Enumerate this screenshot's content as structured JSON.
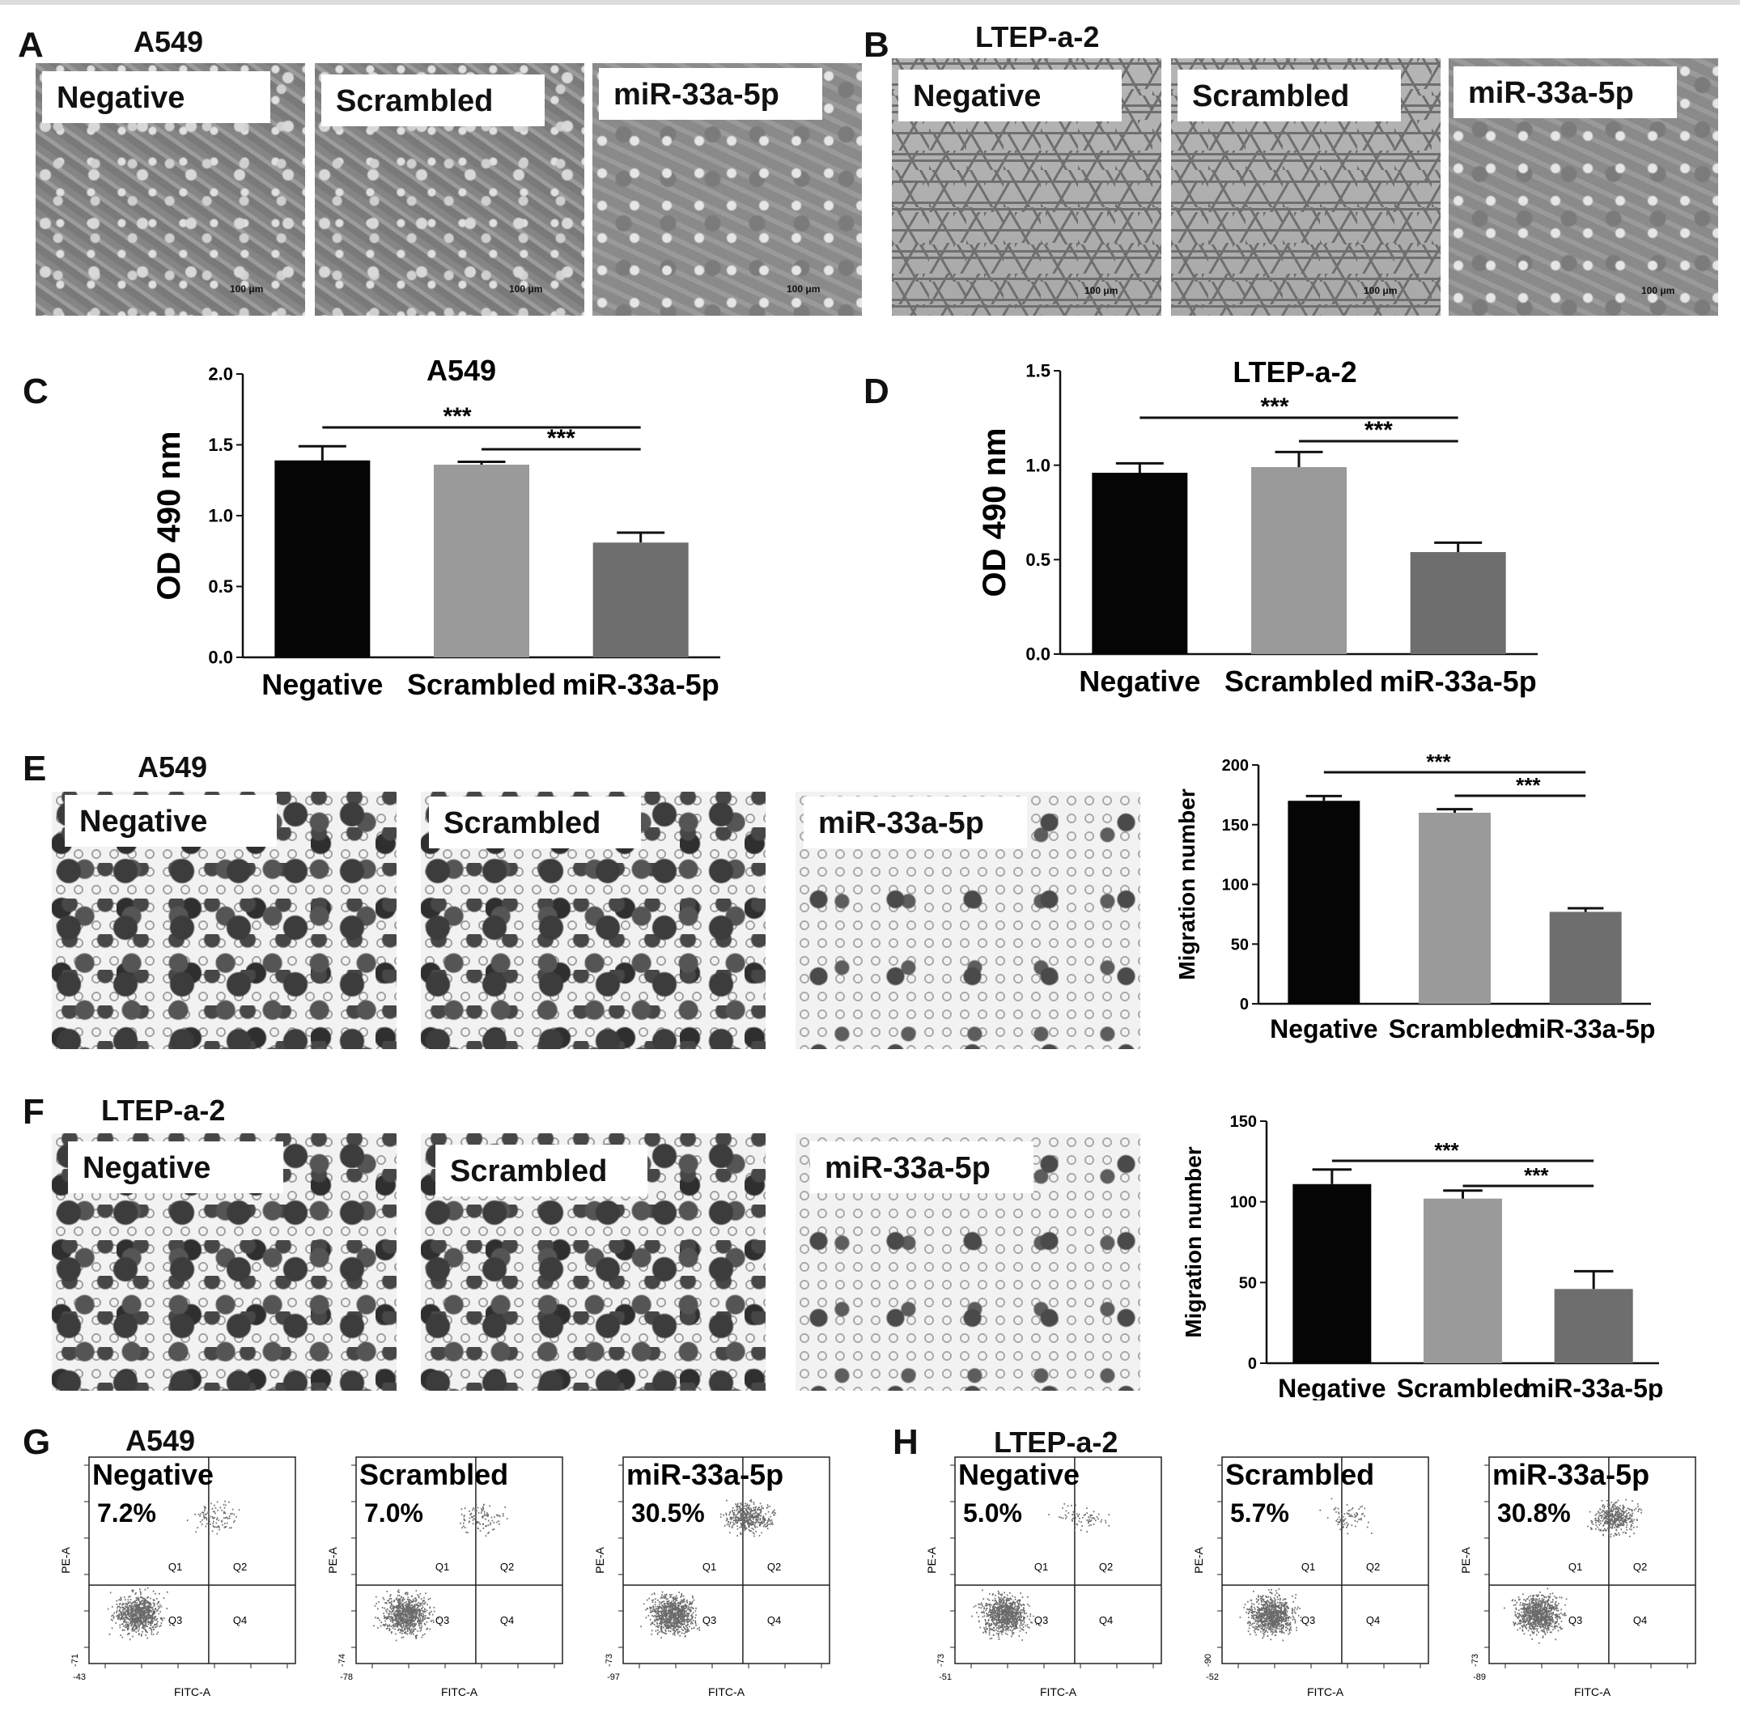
{
  "panels": {
    "A": {
      "letter": "A",
      "cell_line": "A549",
      "images": [
        "Negative",
        "Scrambled",
        "miR-33a-5p"
      ],
      "scale": "100 μm"
    },
    "B": {
      "letter": "B",
      "cell_line": "LTEP-a-2",
      "images": [
        "Negative",
        "Scrambled",
        "miR-33a-5p"
      ],
      "scale": "100 μm"
    },
    "E": {
      "letter": "E",
      "cell_line": "A549",
      "images": [
        "Negative",
        "Scrambled",
        "miR-33a-5p"
      ]
    },
    "F": {
      "letter": "F",
      "cell_line": "LTEP-a-2",
      "images": [
        "Negative",
        "Scrambled",
        "miR-33a-5p"
      ]
    },
    "C": {
      "letter": "C"
    },
    "D": {
      "letter": "D"
    },
    "G": {
      "letter": "G",
      "cell_line": "A549"
    },
    "H": {
      "letter": "H",
      "cell_line": "LTEP-a-2"
    }
  },
  "chart_data": [
    {
      "id": "C",
      "type": "bar",
      "title": "A549",
      "ylabel": "OD 490 nm",
      "xlabel": "",
      "categories": [
        "Negative",
        "Scrambled",
        "miR-33a-5p"
      ],
      "values": [
        1.39,
        1.36,
        0.81
      ],
      "errors": [
        0.1,
        0.02,
        0.07
      ],
      "ylim": [
        0,
        2.0
      ],
      "yticks": [
        "0.0",
        "0.5",
        "1.0",
        "1.5",
        "2.0"
      ],
      "bar_colors": [
        "#050505",
        "#9a9a9a",
        "#6e6e6e"
      ],
      "significance": [
        {
          "from": 0,
          "to": 2,
          "label": "***"
        },
        {
          "from": 1,
          "to": 2,
          "label": "***"
        }
      ]
    },
    {
      "id": "D",
      "type": "bar",
      "title": "LTEP-a-2",
      "ylabel": "OD 490 nm",
      "xlabel": "",
      "categories": [
        "Negative",
        "Scrambled",
        "miR-33a-5p"
      ],
      "values": [
        0.96,
        0.99,
        0.54
      ],
      "errors": [
        0.05,
        0.08,
        0.05
      ],
      "ylim": [
        0,
        1.5
      ],
      "yticks": [
        "0.0",
        "0.5",
        "1.0",
        "1.5"
      ],
      "bar_colors": [
        "#050505",
        "#9a9a9a",
        "#6e6e6e"
      ],
      "significance": [
        {
          "from": 0,
          "to": 2,
          "label": "***"
        },
        {
          "from": 1,
          "to": 2,
          "label": "***"
        }
      ]
    },
    {
      "id": "E",
      "type": "bar",
      "title": "",
      "ylabel": "Migration number",
      "xlabel": "",
      "categories": [
        "Negative",
        "Scrambled",
        "miR-33a-5p"
      ],
      "values": [
        170,
        160,
        77
      ],
      "errors": [
        4,
        3,
        3
      ],
      "ylim": [
        0,
        200
      ],
      "yticks": [
        "0",
        "50",
        "100",
        "150",
        "200"
      ],
      "bar_colors": [
        "#050505",
        "#9a9a9a",
        "#6e6e6e"
      ],
      "significance": [
        {
          "from": 0,
          "to": 2,
          "label": "***"
        },
        {
          "from": 1,
          "to": 2,
          "label": "***"
        }
      ]
    },
    {
      "id": "F",
      "type": "bar",
      "title": "",
      "ylabel": "Migration number",
      "xlabel": "",
      "categories": [
        "Negative",
        "Scrambled",
        "miR-33a-5p"
      ],
      "values": [
        111,
        102,
        46
      ],
      "errors": [
        9,
        5,
        11
      ],
      "ylim": [
        0,
        150
      ],
      "yticks": [
        "0",
        "50",
        "100",
        "150"
      ],
      "bar_colors": [
        "#050505",
        "#9a9a9a",
        "#6e6e6e"
      ],
      "significance": [
        {
          "from": 0,
          "to": 2,
          "label": "***"
        },
        {
          "from": 1,
          "to": 2,
          "label": "***"
        }
      ]
    },
    {
      "id": "G",
      "type": "scatter",
      "cell_line": "A549",
      "xlabel": "FITC-A",
      "ylabel": "PE-A",
      "quadrants": [
        "Q1",
        "Q2",
        "Q3",
        "Q4"
      ],
      "plots": [
        {
          "name": "Negative",
          "apoptosis": "7.2%",
          "xmin": "-43",
          "ymin": "-71"
        },
        {
          "name": "Scrambled",
          "apoptosis": "7.0%",
          "xmin": "-78",
          "ymin": "-74"
        },
        {
          "name": "miR-33a-5p",
          "apoptosis": "30.5%",
          "xmin": "-97",
          "ymin": "-73"
        }
      ]
    },
    {
      "id": "H",
      "type": "scatter",
      "cell_line": "LTEP-a-2",
      "xlabel": "FITC-A",
      "ylabel": "PE-A",
      "quadrants": [
        "Q1",
        "Q2",
        "Q3",
        "Q4"
      ],
      "plots": [
        {
          "name": "Negative",
          "apoptosis": "5.0%",
          "xmin": "-51",
          "ymin": "-73"
        },
        {
          "name": "Scrambled",
          "apoptosis": "5.7%",
          "xmin": "-52",
          "ymin": "-90"
        },
        {
          "name": "miR-33a-5p",
          "apoptosis": "30.8%",
          "xmin": "-89",
          "ymin": "-73"
        }
      ]
    }
  ]
}
